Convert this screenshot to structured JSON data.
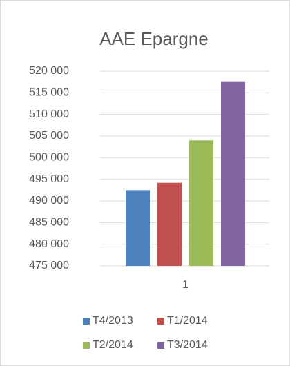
{
  "chart_data": {
    "type": "bar",
    "title": "AAE Epargne",
    "categories": [
      "1"
    ],
    "series": [
      {
        "name": "T4/2013",
        "color": "#4f81bd",
        "values": [
          492500
        ]
      },
      {
        "name": "T1/2014",
        "color": "#c0504d",
        "values": [
          494200
        ]
      },
      {
        "name": "T2/2014",
        "color": "#9bbb59",
        "values": [
          504000
        ]
      },
      {
        "name": "T3/2014",
        "color": "#8064a2",
        "values": [
          517500
        ]
      }
    ],
    "ylim": [
      475000,
      520000
    ],
    "yticks": [
      {
        "value": 475000,
        "label": "475 000"
      },
      {
        "value": 480000,
        "label": "480 000"
      },
      {
        "value": 485000,
        "label": "485 000"
      },
      {
        "value": 490000,
        "label": "490 000"
      },
      {
        "value": 495000,
        "label": "495 000"
      },
      {
        "value": 500000,
        "label": "500 000"
      },
      {
        "value": 505000,
        "label": "505 000"
      },
      {
        "value": 510000,
        "label": "510 000"
      },
      {
        "value": 515000,
        "label": "515 000"
      },
      {
        "value": 520000,
        "label": "520 000"
      }
    ],
    "grid": true,
    "legend": "bottom"
  }
}
